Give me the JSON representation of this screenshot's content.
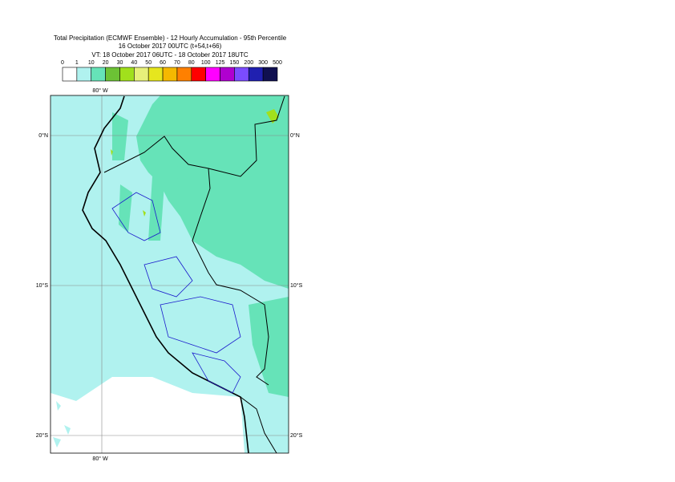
{
  "header": {
    "title": "Total Precipitation (ECMWF Ensemble) - 12 Hourly Accumulation - 95th Percentile",
    "subtitle": "16 October 2017 00UTC (t+54,t+66)",
    "valid_time": "VT: 18 October 2017 06UTC - 18 October 2017 18UTC"
  },
  "legend": {
    "labels": [
      "0",
      "1",
      "10",
      "20",
      "30",
      "40",
      "50",
      "60",
      "70",
      "80",
      "100",
      "125",
      "150",
      "200",
      "300",
      "500"
    ],
    "colors": [
      "#ffffff",
      "#b0f2ef",
      "#66e3b8",
      "#6cc235",
      "#a1e01c",
      "#e7f07a",
      "#e6e61e",
      "#f5b800",
      "#ff8000",
      "#ff0000",
      "#ff00ff",
      "#b000d0",
      "#7b4cff",
      "#2020b0",
      "#101050"
    ]
  },
  "map": {
    "longitude_labels": [
      "80° W",
      "80° W"
    ],
    "latitude_labels": [
      "0°N",
      "10°S",
      "20°S"
    ]
  }
}
